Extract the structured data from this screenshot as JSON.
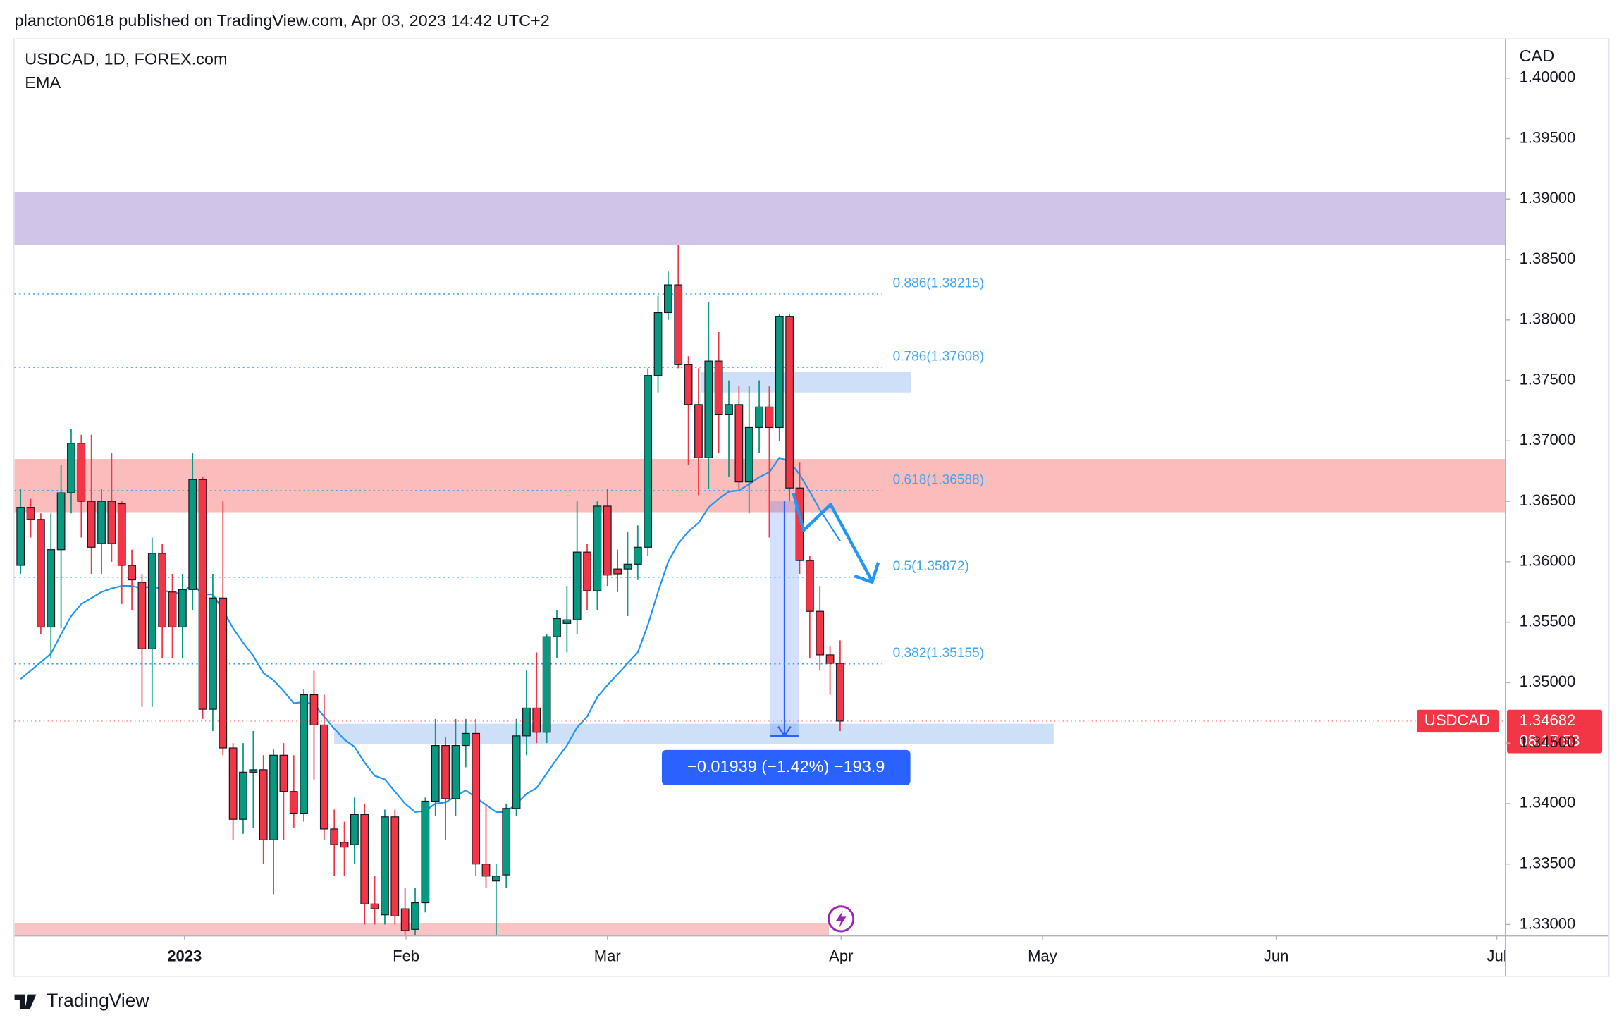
{
  "header": "plancton0618 published on TradingView.com, Apr 03, 2023 14:42 UTC+2",
  "footer": "TradingView",
  "chart_data": {
    "type": "candlestick",
    "title": "USDCAD, 1D, FOREX.com",
    "indicator": "EMA",
    "currency": "CAD",
    "up_color": "#089981",
    "down_color": "#f23645",
    "ema_color": "#2196f3",
    "xlim": [
      -0.6,
      146.7
    ],
    "xticks": [
      {
        "value": 16.2,
        "label": "2023"
      },
      {
        "value": 38.1,
        "label": "Feb"
      },
      {
        "value": 58.0,
        "label": "Mar"
      },
      {
        "value": 81.1,
        "label": "Apr"
      },
      {
        "value": 101.0,
        "label": "May"
      },
      {
        "value": 124.1,
        "label": "Jun"
      },
      {
        "value": 145.9,
        "label": "Jul"
      }
    ],
    "ylim": [
      1.3291,
      1.4032
    ],
    "yticks": [
      {
        "value": 1.33,
        "label": "1.33000"
      },
      {
        "value": 1.335,
        "label": "1.33500"
      },
      {
        "value": 1.34,
        "label": "1.34000"
      },
      {
        "value": 1.345,
        "label": "1.34500"
      },
      {
        "value": 1.35,
        "label": "1.35000"
      },
      {
        "value": 1.355,
        "label": "1.35500"
      },
      {
        "value": 1.36,
        "label": "1.36000"
      },
      {
        "value": 1.365,
        "label": "1.36500"
      },
      {
        "value": 1.37,
        "label": "1.37000"
      },
      {
        "value": 1.375,
        "label": "1.37500"
      },
      {
        "value": 1.38,
        "label": "1.38000"
      },
      {
        "value": 1.385,
        "label": "1.38500"
      },
      {
        "value": 1.39,
        "label": "1.39000"
      },
      {
        "value": 1.395,
        "label": "1.39500"
      },
      {
        "value": 1.4,
        "label": "1.40000"
      }
    ],
    "open": [
      1.3597,
      1.3645,
      1.3635,
      1.3546,
      1.361,
      1.3657,
      1.3698,
      1.365,
      1.3615,
      1.365,
      1.3648,
      1.3597,
      1.3583,
      1.3528,
      1.3607,
      1.3575,
      1.3546,
      1.3577,
      1.3668,
      1.3478,
      1.357,
      1.3446,
      1.3387,
      1.3426,
      1.3428,
      1.337,
      1.344,
      1.341,
      1.3392,
      1.349,
      1.3465,
      1.3379,
      1.3368,
      1.3366,
      1.3391,
      1.3317,
      1.3308,
      1.3389,
      1.3313,
      1.3296,
      1.3318,
      1.3402,
      1.3448,
      1.3404,
      1.3448,
      1.3458,
      1.335,
      1.3336,
      1.3341,
      1.3396,
      1.3456,
      1.3479,
      1.3459,
      1.3538,
      1.3549,
      1.3552,
      1.3608,
      1.3576,
      1.3646,
      1.3594,
      1.3594,
      1.3598,
      1.3612,
      1.3754,
      1.3806,
      1.3829,
      1.3763,
      1.373,
      1.3686,
      1.3766,
      1.3722,
      1.373,
      1.3666,
      1.3711,
      1.3728,
      1.3711,
      1.3803,
      1.3661,
      1.3601,
      1.3559,
      1.3523,
      1.3516
    ],
    "high": [
      1.366,
      1.3652,
      1.364,
      1.364,
      1.368,
      1.371,
      1.3705,
      1.3705,
      1.366,
      1.369,
      1.365,
      1.361,
      1.359,
      1.362,
      1.3615,
      1.359,
      1.359,
      1.369,
      1.367,
      1.359,
      1.365,
      1.345,
      1.345,
      1.346,
      1.344,
      1.3445,
      1.345,
      1.344,
      1.3495,
      1.351,
      1.349,
      1.3395,
      1.3385,
      1.3405,
      1.34,
      1.334,
      1.3395,
      1.3395,
      1.333,
      1.333,
      1.3405,
      1.347,
      1.3455,
      1.347,
      1.347,
      1.347,
      1.34,
      1.335,
      1.34,
      1.347,
      1.351,
      1.3525,
      1.354,
      1.356,
      1.358,
      1.365,
      1.3615,
      1.365,
      1.366,
      1.361,
      1.3625,
      1.363,
      1.376,
      1.382,
      1.384,
      1.3862,
      1.377,
      1.376,
      1.3815,
      1.379,
      1.375,
      1.3745,
      1.3745,
      1.375,
      1.3745,
      1.3805,
      1.3805,
      1.3682,
      1.3605,
      1.358,
      1.353,
      1.3535
    ],
    "low": [
      1.359,
      1.362,
      1.354,
      1.352,
      1.3545,
      1.364,
      1.362,
      1.359,
      1.359,
      1.36,
      1.3565,
      1.356,
      1.348,
      1.348,
      1.352,
      1.352,
      1.352,
      1.356,
      1.347,
      1.346,
      1.344,
      1.337,
      1.3375,
      1.338,
      1.335,
      1.3325,
      1.337,
      1.338,
      1.3385,
      1.342,
      1.337,
      1.334,
      1.334,
      1.335,
      1.33,
      1.33,
      1.33,
      1.33,
      1.329,
      1.329,
      1.331,
      1.339,
      1.337,
      1.339,
      1.343,
      1.334,
      1.333,
      1.329,
      1.333,
      1.339,
      1.344,
      1.345,
      1.345,
      1.352,
      1.3525,
      1.354,
      1.356,
      1.356,
      1.358,
      1.3575,
      1.3555,
      1.3585,
      1.3605,
      1.374,
      1.38,
      1.376,
      1.368,
      1.3655,
      1.366,
      1.369,
      1.367,
      1.366,
      1.364,
      1.369,
      1.362,
      1.37,
      1.365,
      1.359,
      1.352,
      1.351,
      1.349,
      1.346
    ],
    "close": [
      1.3645,
      1.3635,
      1.3546,
      1.361,
      1.3657,
      1.3698,
      1.365,
      1.3612,
      1.365,
      1.3615,
      1.3597,
      1.3585,
      1.3528,
      1.3607,
      1.3546,
      1.3546,
      1.3577,
      1.3668,
      1.3478,
      1.357,
      1.3446,
      1.3387,
      1.3426,
      1.3428,
      1.337,
      1.344,
      1.341,
      1.3392,
      1.349,
      1.3465,
      1.3379,
      1.3366,
      1.3364,
      1.3391,
      1.3317,
      1.3313,
      1.3389,
      1.3307,
      1.3295,
      1.3318,
      1.3402,
      1.3448,
      1.3404,
      1.3448,
      1.3458,
      1.335,
      1.334,
      1.334,
      1.3396,
      1.3456,
      1.3479,
      1.3459,
      1.3538,
      1.3553,
      1.3552,
      1.3608,
      1.3576,
      1.3646,
      1.3589,
      1.359,
      1.3598,
      1.3612,
      1.3754,
      1.3806,
      1.3829,
      1.3763,
      1.373,
      1.3686,
      1.3766,
      1.3722,
      1.373,
      1.3666,
      1.3711,
      1.3728,
      1.3711,
      1.3803,
      1.3661,
      1.3601,
      1.3559,
      1.3523,
      1.3516,
      1.34682
    ],
    "ema": [
      1.3503,
      1.351,
      1.3517,
      1.3524,
      1.354,
      1.3555,
      1.3565,
      1.357,
      1.3575,
      1.3578,
      1.358,
      1.358,
      1.3578,
      1.358,
      1.3577,
      1.3574,
      1.3574,
      1.3582,
      1.3573,
      1.3573,
      1.356,
      1.3545,
      1.3533,
      1.3522,
      1.3508,
      1.3502,
      1.3493,
      1.3483,
      1.3484,
      1.3482,
      1.3472,
      1.3462,
      1.3453,
      1.3447,
      1.3434,
      1.3423,
      1.342,
      1.341,
      1.34,
      1.3393,
      1.3394,
      1.34,
      1.3401,
      1.3406,
      1.3411,
      1.3405,
      1.3399,
      1.3393,
      1.3393,
      1.34,
      1.3408,
      1.3413,
      1.3425,
      1.3437,
      1.3448,
      1.3463,
      1.3472,
      1.3488,
      1.3498,
      1.3507,
      1.3516,
      1.3525,
      1.3548,
      1.3575,
      1.36,
      1.3615,
      1.3625,
      1.3632,
      1.3645,
      1.3652,
      1.3658,
      1.3659,
      1.3664,
      1.367,
      1.3674,
      1.3686,
      1.3683,
      1.3672,
      1.3658,
      1.3643,
      1.363,
      1.3617
    ],
    "zones": [
      {
        "top": 1.3906,
        "bottom": 1.3862,
        "color": "#d1c4e9"
      },
      {
        "top": 1.3685,
        "bottom": 1.3641,
        "color": "#fbbcbc"
      },
      {
        "top": 1.3757,
        "bottom": 1.374,
        "x": [
          67.2,
          88.0
        ],
        "color": "#c9dcf7"
      },
      {
        "top": 1.3466,
        "bottom": 1.3449,
        "x": [
          31.0,
          102.1
        ],
        "color": "#c9dcf7"
      },
      {
        "top": 1.3301,
        "bottom": 1.3291,
        "x": [
          -0.6,
          79.9
        ],
        "color": "#fbbcbc"
      }
    ],
    "fibs": [
      {
        "label": "0.886(1.38215)",
        "value": 1.38215
      },
      {
        "label": "0.786(1.37608)",
        "value": 1.37608
      },
      {
        "label": "0.618(1.36588)",
        "value": 1.36588
      },
      {
        "label": "0.5(1.35872)",
        "value": 1.35872
      },
      {
        "label": "0.382(1.35155)",
        "value": 1.35155
      }
    ],
    "measure": {
      "from": 1.365,
      "to": 1.3456,
      "x": [
        74.1,
        76.9
      ],
      "label": "−0.01939 (−1.42%) −193.9"
    },
    "last_price": {
      "symbol": "USDCAD",
      "price": 1.34682,
      "countdown": "08:17:53"
    }
  }
}
